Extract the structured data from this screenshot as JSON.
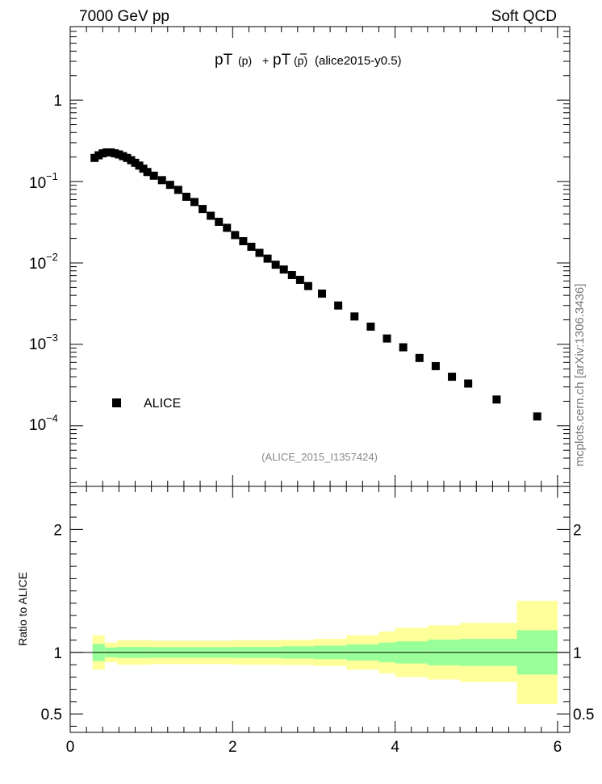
{
  "header": {
    "left_label": "7000 GeV pp",
    "right_label": "Soft QCD"
  },
  "plot_title": {
    "main_a": "pT",
    "paren_a": "(p)",
    "plus": "+",
    "main_b": "pT",
    "paren_b": "(p)",
    "suffix": "(alice2015-y0.5)"
  },
  "analysis_label": "(ALICE_2015_I1357424)",
  "side_label": "mcplots.cern.ch [arXiv:1306.3436]",
  "ratio_ylabel": "Ratio to ALICE",
  "legend": {
    "marker_label": "ALICE"
  },
  "colors": {
    "band_inner": "#99ff99",
    "band_outer": "#ffff99",
    "marker": "#000000"
  },
  "chart_data": [
    {
      "type": "scatter",
      "yscale": "log",
      "xlim": [
        0,
        6.15
      ],
      "ylim": [
        1.8e-05,
        8
      ],
      "ytick_values": [
        1,
        0.1,
        0.01,
        0.001,
        0.0001
      ],
      "ytick_labels": {
        "t0": {
          "base": "1",
          "exp": ""
        },
        "t1": {
          "base": "10",
          "exp": "−1"
        },
        "t2": {
          "base": "10",
          "exp": "−2"
        },
        "t3": {
          "base": "10",
          "exp": "−3"
        },
        "t4": {
          "base": "10",
          "exp": "−4"
        }
      },
      "series": [
        {
          "name": "ALICE",
          "x": [
            0.3,
            0.35,
            0.4,
            0.45,
            0.5,
            0.55,
            0.6,
            0.65,
            0.7,
            0.75,
            0.8,
            0.85,
            0.9,
            0.95,
            1.03,
            1.13,
            1.23,
            1.33,
            1.43,
            1.53,
            1.63,
            1.73,
            1.83,
            1.93,
            2.03,
            2.13,
            2.23,
            2.33,
            2.43,
            2.53,
            2.63,
            2.73,
            2.83,
            2.93,
            3.1,
            3.3,
            3.5,
            3.7,
            3.9,
            4.1,
            4.3,
            4.5,
            4.7,
            4.9,
            5.25,
            5.75
          ],
          "y": [
            0.195,
            0.21,
            0.222,
            0.228,
            0.228,
            0.222,
            0.215,
            0.205,
            0.195,
            0.183,
            0.17,
            0.157,
            0.144,
            0.131,
            0.118,
            0.104,
            0.091,
            0.079,
            0.065,
            0.056,
            0.046,
            0.038,
            0.032,
            0.027,
            0.022,
            0.0185,
            0.0158,
            0.0133,
            0.0113,
            0.0095,
            0.0083,
            0.0071,
            0.0062,
            0.0052,
            0.0042,
            0.003,
            0.0022,
            0.00165,
            0.00118,
            0.00092,
            0.00068,
            0.00054,
            0.0004,
            0.00033,
            0.00021,
            0.00013
          ]
        }
      ]
    },
    {
      "type": "area",
      "xlim": [
        0,
        6.15
      ],
      "ylim": [
        0.35,
        2.35
      ],
      "ylabel": "Ratio to ALICE",
      "xtick_values": [
        0,
        2,
        4,
        6
      ],
      "xtick_labels": [
        "0",
        "2",
        "4",
        "6"
      ],
      "ytick_values": [
        0.5,
        1,
        2
      ],
      "ytick_labels": [
        "0.5",
        "1",
        "2"
      ],
      "reference_line": 1,
      "bins": [
        {
          "x0": 0.275,
          "x1": 0.425,
          "inner": [
            0.93,
            1.07
          ],
          "outer": [
            0.86,
            1.14
          ]
        },
        {
          "x0": 0.425,
          "x1": 0.575,
          "inner": [
            0.96,
            1.04
          ],
          "outer": [
            0.92,
            1.08
          ]
        },
        {
          "x0": 0.575,
          "x1": 1.0,
          "inner": [
            0.955,
            1.045
          ],
          "outer": [
            0.9,
            1.1
          ]
        },
        {
          "x0": 1.0,
          "x1": 2.0,
          "inner": [
            0.957,
            1.043
          ],
          "outer": [
            0.905,
            1.095
          ]
        },
        {
          "x0": 2.0,
          "x1": 2.6,
          "inner": [
            0.955,
            1.045
          ],
          "outer": [
            0.9,
            1.1
          ]
        },
        {
          "x0": 2.6,
          "x1": 3.0,
          "inner": [
            0.95,
            1.05
          ],
          "outer": [
            0.897,
            1.103
          ]
        },
        {
          "x0": 3.0,
          "x1": 3.4,
          "inner": [
            0.945,
            1.055
          ],
          "outer": [
            0.89,
            1.11
          ]
        },
        {
          "x0": 3.4,
          "x1": 3.8,
          "inner": [
            0.935,
            1.065
          ],
          "outer": [
            0.86,
            1.14
          ]
        },
        {
          "x0": 3.8,
          "x1": 4.0,
          "inner": [
            0.92,
            1.08
          ],
          "outer": [
            0.83,
            1.17
          ]
        },
        {
          "x0": 4.0,
          "x1": 4.4,
          "inner": [
            0.91,
            1.09
          ],
          "outer": [
            0.8,
            1.2
          ]
        },
        {
          "x0": 4.4,
          "x1": 4.8,
          "inner": [
            0.895,
            1.105
          ],
          "outer": [
            0.78,
            1.22
          ]
        },
        {
          "x0": 4.8,
          "x1": 5.5,
          "inner": [
            0.89,
            1.11
          ],
          "outer": [
            0.76,
            1.24
          ]
        },
        {
          "x0": 5.5,
          "x1": 6.0,
          "inner": [
            0.82,
            1.18
          ],
          "outer": [
            0.58,
            1.42
          ]
        }
      ]
    }
  ]
}
